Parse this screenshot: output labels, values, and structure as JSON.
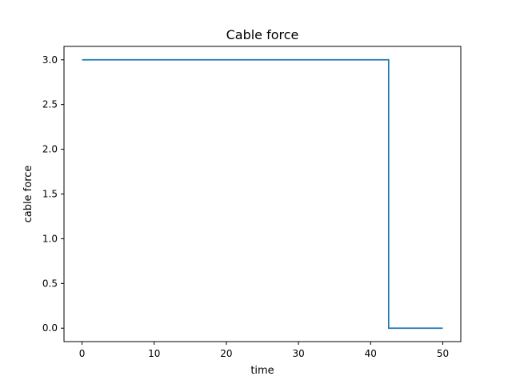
{
  "chart_data": {
    "type": "line",
    "title": "Cable force",
    "xlabel": "time",
    "ylabel": "cable force",
    "xlim": [
      -2.5,
      52.5
    ],
    "ylim": [
      -0.15,
      3.15
    ],
    "xticks": [
      0,
      10,
      20,
      30,
      40,
      50
    ],
    "xtick_labels": [
      "0",
      "10",
      "20",
      "30",
      "40",
      "50"
    ],
    "yticks": [
      0.0,
      0.5,
      1.0,
      1.5,
      2.0,
      2.5,
      3.0
    ],
    "ytick_labels": [
      "0.0",
      "0.5",
      "1.0",
      "1.5",
      "2.0",
      "2.5",
      "3.0"
    ],
    "grid": false,
    "series": [
      {
        "color": "#1f77b4",
        "x": [
          0,
          42.5,
          42.5,
          50
        ],
        "y": [
          3.0,
          3.0,
          0.0,
          0.0
        ]
      }
    ]
  }
}
